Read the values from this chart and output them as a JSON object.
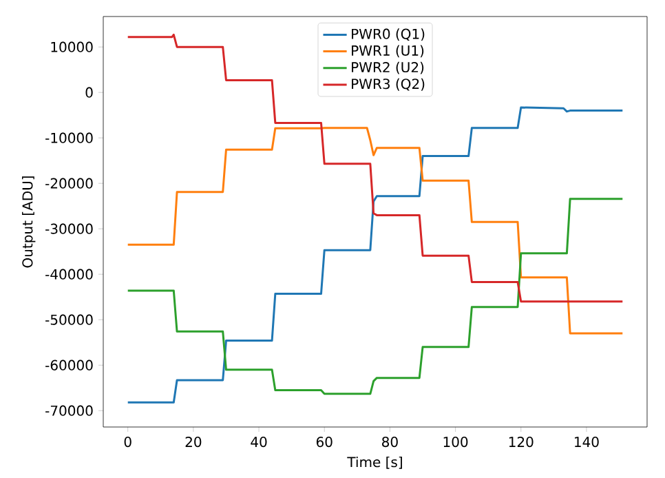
{
  "chart_data": {
    "type": "line",
    "xlabel": "Time [s]",
    "ylabel": "Output [ADU]",
    "xlim": [
      -7.5,
      158.5
    ],
    "ylim": [
      -73600,
      16700
    ],
    "xticks": [
      0,
      20,
      40,
      60,
      80,
      100,
      120,
      140
    ],
    "yticks": [
      -70000,
      -60000,
      -50000,
      -40000,
      -30000,
      -20000,
      -10000,
      0,
      10000
    ],
    "legend": "top",
    "grid": false,
    "line_style": "solid",
    "series": [
      {
        "name": "PWR0 (Q1)",
        "color": "#1f77b4",
        "x": [
          0,
          14,
          15,
          29,
          30,
          44,
          45,
          59,
          60,
          74,
          75,
          76,
          89,
          90,
          104,
          105,
          119,
          120,
          133,
          134,
          135,
          151
        ],
        "values": [
          -68200,
          -68200,
          -63300,
          -63300,
          -54600,
          -54600,
          -44300,
          -44300,
          -34700,
          -34700,
          -24000,
          -22800,
          -22800,
          -14000,
          -14000,
          -7800,
          -7800,
          -3300,
          -3500,
          -4200,
          -4000,
          -4000
        ]
      },
      {
        "name": "PWR1 (U1)",
        "color": "#ff7f0e",
        "x": [
          0,
          14,
          15,
          29,
          30,
          44,
          45,
          59,
          60,
          73,
          74,
          75,
          76,
          89,
          90,
          104,
          105,
          119,
          120,
          134,
          135,
          151
        ],
        "values": [
          -33500,
          -33500,
          -21900,
          -21900,
          -12600,
          -12600,
          -7900,
          -7900,
          -7800,
          -7800,
          -10500,
          -13800,
          -12200,
          -12200,
          -19400,
          -19400,
          -28500,
          -28500,
          -40700,
          -40700,
          -53000,
          -53000
        ]
      },
      {
        "name": "PWR2 (U2)",
        "color": "#2ca02c",
        "x": [
          0,
          14,
          15,
          29,
          30,
          44,
          45,
          59,
          60,
          74,
          75,
          76,
          89,
          90,
          104,
          105,
          119,
          120,
          134,
          135,
          151
        ],
        "values": [
          -43600,
          -43600,
          -52600,
          -52600,
          -61000,
          -61000,
          -65500,
          -65500,
          -66300,
          -66300,
          -63500,
          -62800,
          -62800,
          -56000,
          -56000,
          -47200,
          -47200,
          -35400,
          -35400,
          -23400,
          -23400
        ]
      },
      {
        "name": "PWR3 (Q2)",
        "color": "#d62728",
        "x": [
          0,
          13.5,
          14,
          15,
          29,
          30,
          44,
          45,
          59,
          60,
          74,
          75,
          76,
          89,
          90,
          104,
          105,
          119,
          120,
          134,
          151
        ],
        "values": [
          12200,
          12200,
          12700,
          10000,
          10000,
          2700,
          2700,
          -6700,
          -6700,
          -15700,
          -15700,
          -26600,
          -27000,
          -27000,
          -35900,
          -35900,
          -41700,
          -41700,
          -46000,
          -46000,
          -46000
        ]
      }
    ]
  }
}
